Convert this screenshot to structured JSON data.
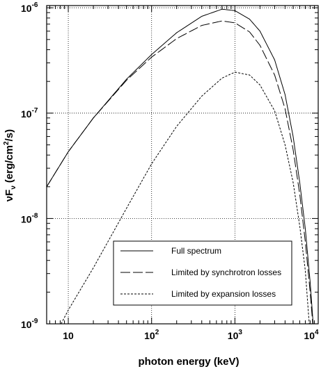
{
  "chart_data": {
    "type": "line",
    "title": "",
    "xlabel": "photon energy (keV)",
    "ylabel": "νFν (erg/cm²/s)",
    "ylabel_parts": {
      "nu": "ν",
      "F": "F",
      "sub_nu": "ν",
      "units_open": "(erg/cm",
      "units_sup": "2",
      "units_close": "/s)"
    },
    "xscale": "log",
    "yscale": "log",
    "xlim": [
      5.5,
      10000
    ],
    "ylim": [
      1e-09,
      1.05e-06
    ],
    "grid": true,
    "legend_position": "bottom-center",
    "x_ticks": [
      {
        "value": 10,
        "base": "10",
        "exp": ""
      },
      {
        "value": 100,
        "base": "10",
        "exp": "2"
      },
      {
        "value": 1000,
        "base": "10",
        "exp": "3"
      },
      {
        "value": 10000,
        "base": "10",
        "exp": "4"
      }
    ],
    "y_ticks": [
      {
        "value": 1e-09,
        "base": "10",
        "exp": "-9"
      },
      {
        "value": 1e-08,
        "base": "10",
        "exp": "-8"
      },
      {
        "value": 1e-07,
        "base": "10",
        "exp": "-7"
      },
      {
        "value": 1e-06,
        "base": "10",
        "exp": "-6"
      }
    ],
    "series": [
      {
        "name": "Full spectrum",
        "style": "solid",
        "color": "#000000",
        "points": [
          [
            5.5,
            2e-08
          ],
          [
            10,
            4.3e-08
          ],
          [
            20,
            9e-08
          ],
          [
            50,
            2.1e-07
          ],
          [
            100,
            3.6e-07
          ],
          [
            200,
            5.8e-07
          ],
          [
            400,
            8.3e-07
          ],
          [
            700,
            9.7e-07
          ],
          [
            1000,
            9.4e-07
          ],
          [
            1500,
            7.8e-07
          ],
          [
            2000,
            6e-07
          ],
          [
            3000,
            3.2e-07
          ],
          [
            4000,
            1.5e-07
          ],
          [
            5000,
            6e-08
          ],
          [
            6000,
            2.2e-08
          ],
          [
            7000,
            8e-09
          ],
          [
            8000,
            2.5e-09
          ],
          [
            8700,
            1e-09
          ]
        ]
      },
      {
        "name": "Limited by synchrotron losses",
        "style": "long-dash",
        "color": "#000000",
        "points": [
          [
            5.5,
            2e-08
          ],
          [
            10,
            4.3e-08
          ],
          [
            20,
            9e-08
          ],
          [
            50,
            2.05e-07
          ],
          [
            100,
            3.4e-07
          ],
          [
            200,
            5.1e-07
          ],
          [
            400,
            6.8e-07
          ],
          [
            700,
            7.5e-07
          ],
          [
            1000,
            7.2e-07
          ],
          [
            1500,
            5.9e-07
          ],
          [
            2000,
            4.4e-07
          ],
          [
            3000,
            2.3e-07
          ],
          [
            4000,
            1.1e-07
          ],
          [
            5000,
            4.5e-08
          ],
          [
            6000,
            1.7e-08
          ],
          [
            7000,
            6e-09
          ],
          [
            8000,
            2e-09
          ],
          [
            8600,
            1e-09
          ]
        ]
      },
      {
        "name": "Limited by expansion losses",
        "style": "short-dash",
        "color": "#000000",
        "points": [
          [
            8.2,
            1e-09
          ],
          [
            10,
            1.35e-09
          ],
          [
            20,
            3.4e-09
          ],
          [
            50,
            1.25e-08
          ],
          [
            100,
            3.3e-08
          ],
          [
            200,
            7.5e-08
          ],
          [
            400,
            1.45e-07
          ],
          [
            700,
            2.15e-07
          ],
          [
            1000,
            2.45e-07
          ],
          [
            1500,
            2.3e-07
          ],
          [
            2000,
            1.85e-07
          ],
          [
            3000,
            1.05e-07
          ],
          [
            4000,
            5e-08
          ],
          [
            5000,
            2.2e-08
          ],
          [
            6000,
            8.5e-09
          ],
          [
            7000,
            3.2e-09
          ],
          [
            7800,
            1e-09
          ]
        ]
      }
    ]
  }
}
